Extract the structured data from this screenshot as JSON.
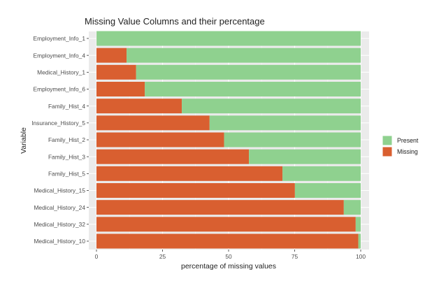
{
  "chart_data": {
    "type": "bar",
    "orientation": "horizontal",
    "stacked": true,
    "title": "Missing Value Columns and their percentage",
    "xlabel": "percentage of missing values",
    "ylabel": "Variable",
    "xlim": [
      0,
      100
    ],
    "x_ticks": [
      "0",
      "25",
      "50",
      "75",
      "100"
    ],
    "grid": true,
    "legend_position": "right",
    "categories": [
      "Employment_Info_1",
      "Employment_Info_4",
      "Medical_History_1",
      "Employment_Info_6",
      "Family_Hist_4",
      "Insurance_History_5",
      "Family_Hist_2",
      "Family_Hist_3",
      "Family_Hist_5",
      "Medical_History_15",
      "Medical_History_24",
      "Medical_History_32",
      "Medical_History_10"
    ],
    "series": [
      {
        "name": "Missing",
        "color": "#D95F30",
        "values": [
          0.03,
          11.4,
          15.0,
          18.3,
          32.3,
          42.8,
          48.3,
          57.7,
          70.4,
          75.1,
          93.6,
          98.1,
          99.1
        ]
      },
      {
        "name": "Present",
        "color": "#8FD18F",
        "values": [
          99.97,
          88.6,
          85.0,
          81.7,
          67.7,
          57.2,
          51.7,
          42.3,
          29.6,
          24.9,
          6.4,
          1.9,
          0.9
        ]
      }
    ],
    "legend": [
      "Present",
      "Missing"
    ]
  }
}
